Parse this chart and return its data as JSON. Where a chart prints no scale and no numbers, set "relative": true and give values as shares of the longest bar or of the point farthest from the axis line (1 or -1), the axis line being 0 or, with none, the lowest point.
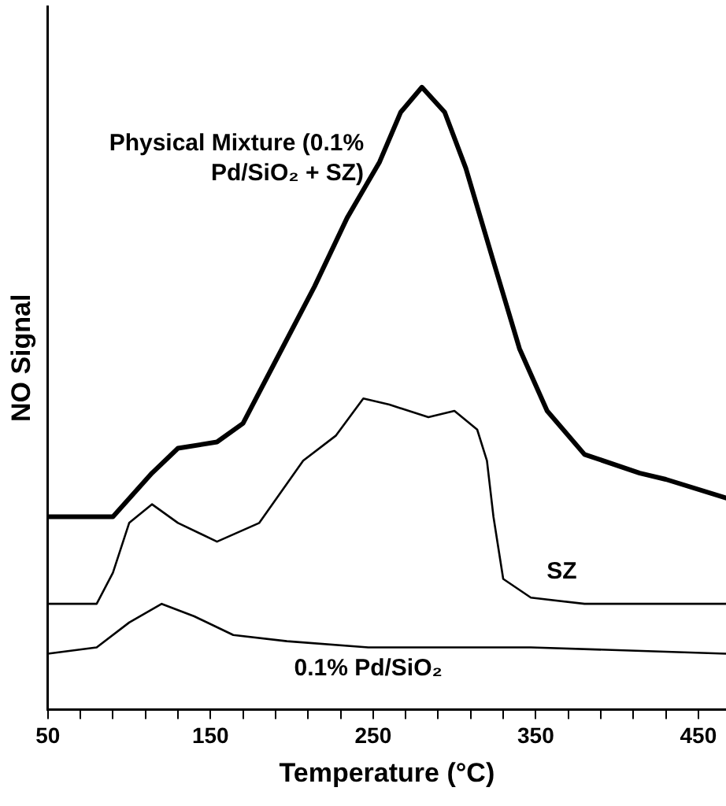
{
  "chart_data": {
    "type": "line",
    "xlabel": "Temperature (°C)",
    "ylabel": "NO Signal",
    "relative": true,
    "x": [
      50,
      90,
      114,
      130,
      154,
      170,
      190,
      214,
      234,
      254,
      267,
      280,
      294,
      307,
      324,
      340,
      357,
      380,
      414,
      430,
      467
    ],
    "xlim": [
      50,
      467
    ],
    "xticks": [
      50,
      {
        "value": 70,
        "label": null
      },
      {
        "value": 90,
        "label": null
      },
      {
        "value": 110,
        "label": null
      },
      {
        "value": 130,
        "label": null
      },
      150,
      {
        "value": 170,
        "label": null
      },
      {
        "value": 190,
        "label": null
      },
      {
        "value": 210,
        "label": null
      },
      {
        "value": 230,
        "label": null
      },
      250,
      {
        "value": 270,
        "label": null
      },
      {
        "value": 290,
        "label": null
      },
      {
        "value": 310,
        "label": null
      },
      {
        "value": 330,
        "label": null
      },
      350,
      {
        "value": 370,
        "label": null
      },
      {
        "value": 390,
        "label": null
      },
      {
        "value": 410,
        "label": null
      },
      {
        "value": 430,
        "label": null
      },
      450
    ],
    "series": [
      {
        "name": "Physical Mixture (0.1% Pd/SiO₂ + SZ)",
        "color": "#000000",
        "values": [
          0.31,
          0.31,
          0.38,
          0.42,
          0.43,
          0.46,
          0.56,
          0.68,
          0.79,
          0.88,
          0.96,
          1.0,
          0.96,
          0.87,
          0.72,
          0.58,
          0.48,
          0.41,
          0.38,
          0.37,
          0.34
        ]
      },
      {
        "name": "SZ",
        "color": "#000000",
        "x": [
          50,
          80,
          90,
          100,
          114,
          130,
          154,
          180,
          207,
          227,
          244,
          260,
          284,
          300,
          314,
          320,
          324,
          330,
          347,
          380,
          467
        ],
        "values": [
          0.17,
          0.17,
          0.22,
          0.3,
          0.33,
          0.3,
          0.27,
          0.3,
          0.4,
          0.44,
          0.5,
          0.49,
          0.47,
          0.48,
          0.45,
          0.4,
          0.31,
          0.21,
          0.18,
          0.17,
          0.17
        ]
      },
      {
        "name": "0.1% Pd/SiO₂",
        "color": "#000000",
        "x": [
          50,
          80,
          100,
          120,
          140,
          164,
          197,
          247,
          347,
          467
        ],
        "values": [
          0.09,
          0.1,
          0.14,
          0.17,
          0.15,
          0.12,
          0.11,
          0.1,
          0.1,
          0.09
        ]
      }
    ],
    "grid": false,
    "legend": false,
    "marker": "none",
    "line_style": "solid"
  }
}
